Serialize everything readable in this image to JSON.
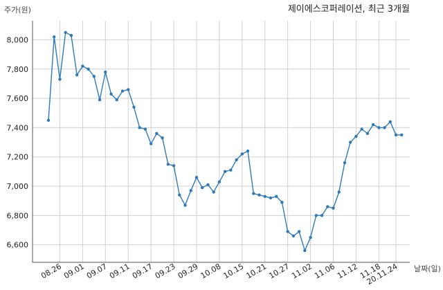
{
  "chart_data": {
    "type": "line",
    "title": "제이에스코퍼레이션, 최근 3개월",
    "ylabel": "주가(원)",
    "xlabel": "날짜(일)",
    "ylim": [
      6480,
      8130
    ],
    "grid": true,
    "line_color": "#2e7ab8",
    "y_ticks": [
      6600,
      6800,
      7000,
      7200,
      7400,
      7600,
      7800,
      8000
    ],
    "y_tick_labels": [
      "6,600",
      "6,800",
      "7,000",
      "7,200",
      "7,400",
      "7,600",
      "7,800",
      "8,000"
    ],
    "x_tick_labels": [
      "08.26",
      "09.01",
      "09.07",
      "09.11",
      "09.17",
      "09.23",
      "09.29",
      "10.08",
      "10.15",
      "10.21",
      "10.27",
      "11.02",
      "11.06",
      "11.12",
      "11.18",
      "20.11.24"
    ],
    "x_tick_index": [
      2,
      6,
      10,
      14,
      18,
      22,
      26,
      30,
      34,
      38,
      42,
      46,
      50,
      54,
      58,
      61
    ],
    "values": [
      7450,
      8020,
      7730,
      8050,
      8030,
      7760,
      7820,
      7800,
      7750,
      7590,
      7780,
      7630,
      7590,
      7650,
      7660,
      7540,
      7400,
      7390,
      7290,
      7360,
      7330,
      7150,
      7140,
      6940,
      6870,
      6970,
      7060,
      6990,
      7010,
      6960,
      7030,
      7100,
      7110,
      7180,
      7220,
      7240,
      6950,
      6940,
      6930,
      6920,
      6930,
      6890,
      6690,
      6660,
      6690,
      6560,
      6650,
      6800,
      6800,
      6860,
      6850,
      6960,
      7160,
      7300,
      7340,
      7390,
      7360,
      7420,
      7400,
      7400,
      7440,
      7350,
      7350
    ]
  }
}
